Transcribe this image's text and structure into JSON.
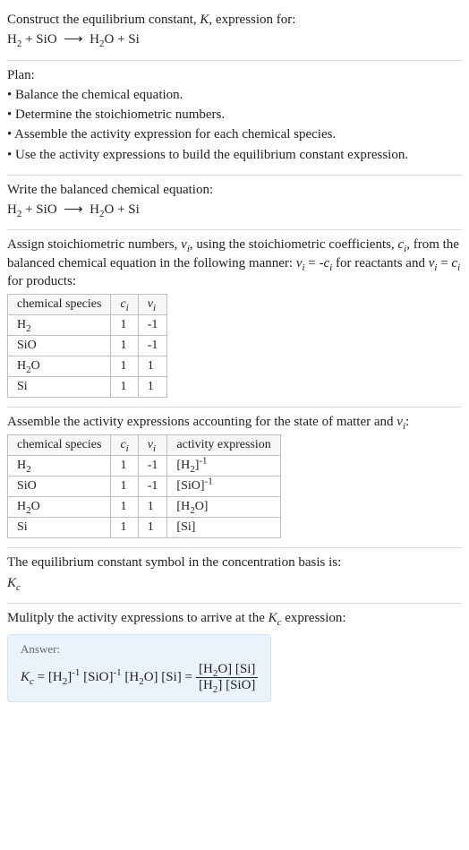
{
  "title": "Construct the equilibrium constant, K, expression for:",
  "eq_main": "H₂ + SiO ⟶ H₂O + Si",
  "plan_heading": "Plan:",
  "plan_items": [
    "• Balance the chemical equation.",
    "• Determine the stoichiometric numbers.",
    "• Assemble the activity expression for each chemical species.",
    "• Use the activity expressions to build the equilibrium constant expression."
  ],
  "balanced_heading": "Write the balanced chemical equation:",
  "balanced_eq": "H₂ + SiO ⟶ H₂O + Si",
  "stoich_text_1": "Assign stoichiometric numbers, νᵢ, using the stoichiometric coefficients, cᵢ, from",
  "stoich_text_2": "the balanced chemical equation in the following manner: νᵢ = -cᵢ for reactants",
  "stoich_text_3": "and νᵢ = cᵢ for products:",
  "table1": {
    "headers": [
      "chemical species",
      "cᵢ",
      "νᵢ"
    ],
    "rows": [
      [
        "H₂",
        "1",
        "-1"
      ],
      [
        "SiO",
        "1",
        "-1"
      ],
      [
        "H₂O",
        "1",
        "1"
      ],
      [
        "Si",
        "1",
        "1"
      ]
    ]
  },
  "activity_heading": "Assemble the activity expressions accounting for the state of matter and νᵢ:",
  "table2": {
    "headers": [
      "chemical species",
      "cᵢ",
      "νᵢ",
      "activity expression"
    ],
    "rows": [
      [
        "H₂",
        "1",
        "-1",
        "[H₂]⁻¹"
      ],
      [
        "SiO",
        "1",
        "-1",
        "[SiO]⁻¹"
      ],
      [
        "H₂O",
        "1",
        "1",
        "[H₂O]"
      ],
      [
        "Si",
        "1",
        "1",
        "[Si]"
      ]
    ]
  },
  "kc_text": "The equilibrium constant symbol in the concentration basis is:",
  "kc_symbol": "K_c",
  "multiply_text": "Mulitply the activity expressions to arrive at the K_c expression:",
  "answer_label": "Answer:",
  "answer_lhs": "K_c = [H₂]⁻¹ [SiO]⁻¹ [H₂O] [Si] =",
  "answer_frac_num": "[H₂O] [Si]",
  "answer_frac_den": "[H₂] [SiO]",
  "colors": {
    "text": "#222222",
    "rule": "#dcdcdc",
    "table_border": "#bfbfbf",
    "answer_bg": "#eaf3fb",
    "answer_border": "#d2e5f3"
  }
}
